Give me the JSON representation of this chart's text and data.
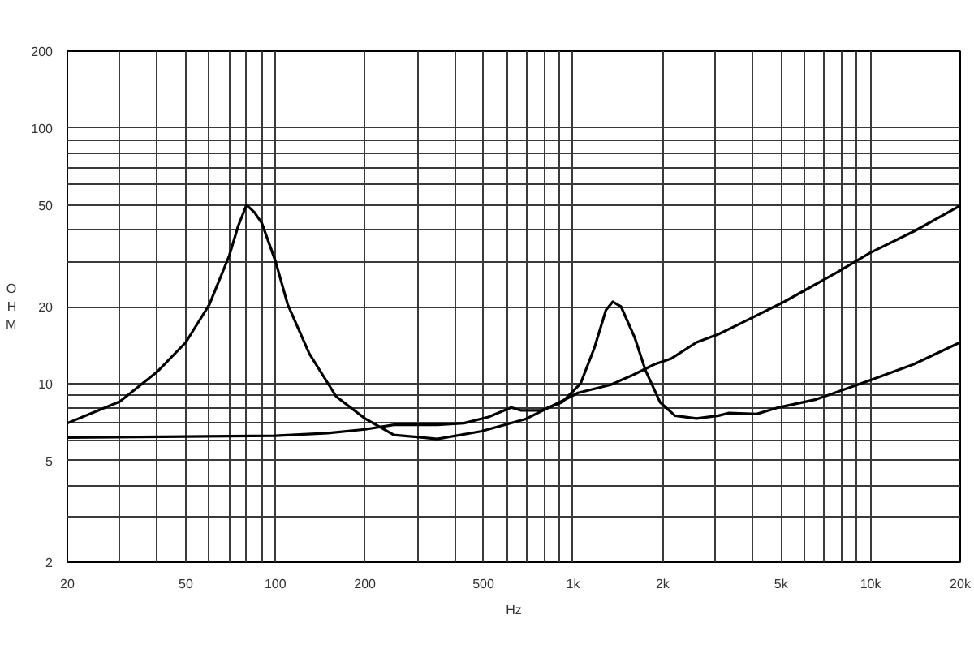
{
  "chart_data": {
    "type": "line",
    "xlabel": "Hz",
    "ylabel": "OHM",
    "log": "xy",
    "grid": true,
    "xlim": [
      20,
      20000
    ],
    "ylim": [
      2,
      200
    ],
    "xticks": [
      20,
      {
        "value": 30,
        "label": null
      },
      {
        "value": 40,
        "label": null
      },
      50,
      {
        "value": 60,
        "label": null
      },
      {
        "value": 70,
        "label": null
      },
      {
        "value": 80,
        "label": null
      },
      {
        "value": 90,
        "label": null
      },
      100,
      200,
      {
        "value": 300,
        "label": null
      },
      {
        "value": 400,
        "label": null
      },
      500,
      {
        "value": 600,
        "label": null
      },
      {
        "value": 700,
        "label": null
      },
      {
        "value": 800,
        "label": null
      },
      {
        "value": 900,
        "label": null
      },
      {
        "value": 1000,
        "label": "1k"
      },
      {
        "value": 2000,
        "label": "2k"
      },
      {
        "value": 3000,
        "label": null
      },
      {
        "value": 4000,
        "label": null
      },
      {
        "value": 5000,
        "label": "5k"
      },
      {
        "value": 6000,
        "label": null
      },
      {
        "value": 7000,
        "label": null
      },
      {
        "value": 8000,
        "label": null
      },
      {
        "value": 9000,
        "label": null
      },
      {
        "value": 10000,
        "label": "10k"
      },
      {
        "value": 20000,
        "label": "20k"
      }
    ],
    "yticks": [
      2,
      {
        "value": 3,
        "label": null
      },
      {
        "value": 4,
        "label": null
      },
      5,
      {
        "value": 6,
        "label": null
      },
      {
        "value": 7,
        "label": null
      },
      {
        "value": 8,
        "label": null
      },
      {
        "value": 9,
        "label": null
      },
      10,
      20,
      {
        "value": 30,
        "label": null
      },
      {
        "value": 40,
        "label": null
      },
      50,
      {
        "value": 60,
        "label": null
      },
      {
        "value": 70,
        "label": null
      },
      {
        "value": 80,
        "label": null
      },
      {
        "value": 90,
        "label": null
      },
      100,
      200
    ],
    "series": [
      {
        "color": "#000000",
        "x": [
          20,
          30,
          40,
          50,
          60,
          70,
          75,
          80,
          85,
          90,
          100,
          110,
          130,
          160,
          200,
          250,
          350,
          490,
          690,
          920,
          1040,
          1340,
          1590,
          1880,
          2130,
          2600,
          3080,
          3660,
          5120,
          7740,
          9960,
          13960,
          20000
        ],
        "values": [
          7.0,
          8.5,
          11.1,
          14.5,
          20.4,
          31.7,
          41.4,
          50,
          46.8,
          42.5,
          30.2,
          20.4,
          13.1,
          8.9,
          7.3,
          6.3,
          6.07,
          6.5,
          7.25,
          8.55,
          9.2,
          9.9,
          10.8,
          11.9,
          12.5,
          14.5,
          15.6,
          17.2,
          20.9,
          27.3,
          32.5,
          39.4,
          49.7
        ]
      },
      {
        "color": "#000000",
        "x": [
          20,
          50,
          100,
          150,
          200,
          250,
          350,
          430,
          520,
          620,
          670,
          780,
          920,
          1060,
          1180,
          1290,
          1360,
          1450,
          1610,
          1750,
          1960,
          2200,
          2600,
          3080,
          3340,
          4140,
          4900,
          6560,
          9960,
          13960,
          20000
        ],
        "values": [
          6.15,
          6.2,
          6.25,
          6.4,
          6.62,
          6.9,
          6.9,
          7.0,
          7.4,
          8.06,
          7.85,
          7.85,
          8.46,
          10.0,
          13.8,
          19.4,
          20.9,
          20.0,
          15.2,
          11.3,
          8.46,
          7.49,
          7.3,
          7.49,
          7.67,
          7.6,
          8.06,
          8.67,
          10.3,
          11.9,
          14.5
        ]
      }
    ]
  }
}
